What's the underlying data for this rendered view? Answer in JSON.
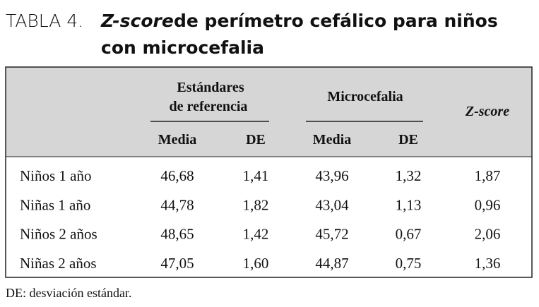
{
  "title": {
    "label": "TABLA 4.",
    "emphasis": "Z-score",
    "line1": "de perímetro cefálico para niños",
    "line2": "con microcefalia"
  },
  "table": {
    "groups": [
      "Estándares",
      "de referencia",
      "Microcefalia",
      "Z-score"
    ],
    "subheaders": [
      "Media",
      "DE",
      "Media",
      "DE"
    ],
    "rows": [
      [
        "Niños 1 año",
        "46,68",
        "1,41",
        "43,96",
        "1,32",
        "1,87"
      ],
      [
        "Niñas 1 año",
        "44,78",
        "1,82",
        "43,04",
        "1,13",
        "0,96"
      ],
      [
        "Niños 2 años",
        "48,65",
        "1,42",
        "45,72",
        "0,67",
        "2,06"
      ],
      [
        "Niñas 2 años",
        "47,05",
        "1,60",
        "44,87",
        "0,75",
        "1,36"
      ]
    ]
  },
  "footnote": "DE: desviación estándar."
}
